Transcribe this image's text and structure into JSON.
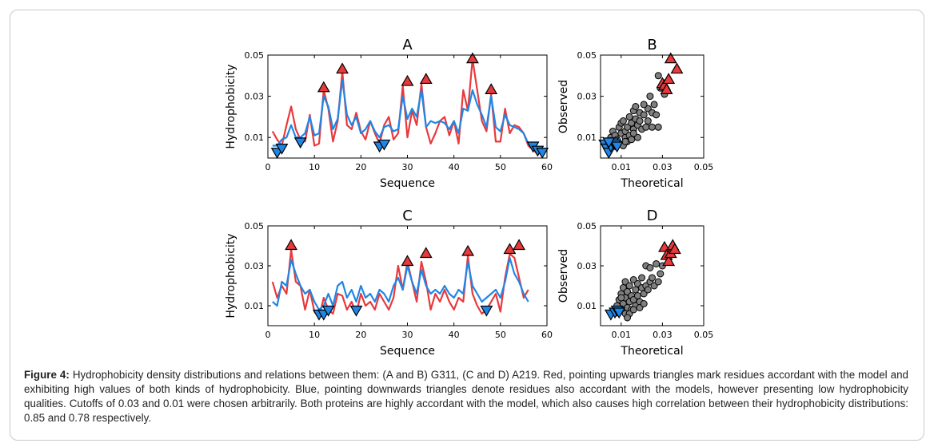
{
  "caption": {
    "label": "Figure 4:",
    "text": "Hydrophobicity density distributions and relations between them: (A and B) G311, (C and D) A219. Red, pointing upwards triangles mark residues accordant with the model and exhibiting high values of both kinds of hydrophobicity. Blue, pointing downwards triangles denote residues also accordant with the models, however presenting low hydrophobicity qualities. Cutoffs of 0.03 and 0.01 were chosen arbitrarily. Both proteins are highly accordant with the model, which also causes high correlation between their hydrophobicity distributions: 0.85 and 0.78 respectively."
  },
  "colors": {
    "red": "#e8393c",
    "blue": "#1f86e6",
    "gray": "#7f7f7f"
  },
  "chart_data": [
    {
      "id": "A",
      "type": "line",
      "title": "A",
      "xlabel": "Sequence",
      "ylabel": "Hydrophobicity",
      "xlim": [
        0,
        60
      ],
      "ylim": [
        0,
        0.05
      ],
      "xticks": [
        "0",
        "10",
        "20",
        "30",
        "40",
        "50",
        "60"
      ],
      "yticks": [
        "0.01",
        "0.03",
        "0.05"
      ],
      "series": [
        {
          "color": "red",
          "x": [
            1,
            2,
            3,
            4,
            5,
            6,
            7,
            8,
            9,
            10,
            11,
            12,
            13,
            14,
            15,
            16,
            17,
            18,
            19,
            20,
            21,
            22,
            23,
            24,
            25,
            26,
            27,
            28,
            29,
            30,
            31,
            32,
            33,
            34,
            35,
            36,
            37,
            38,
            39,
            40,
            41,
            42,
            43,
            44,
            45,
            46,
            47,
            48,
            49,
            50,
            51,
            52,
            53,
            54,
            55,
            56,
            57,
            58,
            59
          ],
          "y": [
            0.013,
            0.009,
            0.006,
            0.016,
            0.025,
            0.014,
            0.009,
            0.008,
            0.021,
            0.006,
            0.007,
            0.033,
            0.024,
            0.008,
            0.018,
            0.042,
            0.016,
            0.014,
            0.022,
            0.013,
            0.009,
            0.018,
            0.012,
            0.007,
            0.016,
            0.02,
            0.009,
            0.012,
            0.035,
            0.01,
            0.023,
            0.016,
            0.036,
            0.015,
            0.007,
            0.012,
            0.018,
            0.02,
            0.011,
            0.018,
            0.007,
            0.033,
            0.023,
            0.048,
            0.033,
            0.018,
            0.013,
            0.031,
            0.008,
            0.008,
            0.024,
            0.012,
            0.016,
            0.015,
            0.012,
            0.006,
            0.004,
            0.002,
            0.003
          ]
        },
        {
          "color": "blue",
          "x": [
            1,
            2,
            3,
            4,
            5,
            6,
            7,
            8,
            9,
            10,
            11,
            12,
            13,
            14,
            15,
            16,
            17,
            18,
            19,
            20,
            21,
            22,
            23,
            24,
            25,
            26,
            27,
            28,
            29,
            30,
            31,
            32,
            33,
            34,
            35,
            36,
            37,
            38,
            39,
            40,
            41,
            42,
            43,
            44,
            45,
            46,
            47,
            48,
            49,
            50,
            51,
            52,
            53,
            54,
            55,
            56,
            57,
            58,
            59
          ],
          "y": [
            0.006,
            0.006,
            0.009,
            0.01,
            0.016,
            0.01,
            0.01,
            0.012,
            0.02,
            0.011,
            0.012,
            0.03,
            0.025,
            0.014,
            0.019,
            0.038,
            0.021,
            0.016,
            0.02,
            0.012,
            0.014,
            0.018,
            0.013,
            0.01,
            0.015,
            0.016,
            0.013,
            0.014,
            0.03,
            0.019,
            0.024,
            0.02,
            0.033,
            0.015,
            0.018,
            0.017,
            0.018,
            0.017,
            0.014,
            0.018,
            0.012,
            0.024,
            0.023,
            0.033,
            0.026,
            0.021,
            0.015,
            0.03,
            0.015,
            0.013,
            0.021,
            0.016,
            0.015,
            0.014,
            0.012,
            0.007,
            0.005,
            0.003,
            0.004
          ]
        }
      ],
      "markers_up": [
        [
          12,
          0.034
        ],
        [
          16,
          0.043
        ],
        [
          30,
          0.037
        ],
        [
          34,
          0.038
        ],
        [
          44,
          0.048
        ],
        [
          48,
          0.033
        ]
      ],
      "markers_down": [
        [
          2,
          0.003
        ],
        [
          3,
          0.005
        ],
        [
          7,
          0.008
        ],
        [
          24,
          0.006
        ],
        [
          25,
          0.007
        ],
        [
          57,
          0.006
        ],
        [
          58,
          0.004
        ],
        [
          59,
          0.003
        ]
      ]
    },
    {
      "id": "B",
      "type": "scatter",
      "title": "B",
      "xlabel": "Theoretical",
      "ylabel": "Observed",
      "xlim": [
        0,
        0.05
      ],
      "ylim": [
        0,
        0.05
      ],
      "xticks": [
        "0.01",
        "0.03",
        "0.05"
      ],
      "yticks": [
        "0.01",
        "0.03",
        "0.05"
      ],
      "points": [
        [
          0.005,
          0.01
        ],
        [
          0.006,
          0.013
        ],
        [
          0.007,
          0.011
        ],
        [
          0.008,
          0.009
        ],
        [
          0.009,
          0.015
        ],
        [
          0.009,
          0.007
        ],
        [
          0.01,
          0.012
        ],
        [
          0.01,
          0.017
        ],
        [
          0.011,
          0.018
        ],
        [
          0.012,
          0.01
        ],
        [
          0.012,
          0.013
        ],
        [
          0.013,
          0.008
        ],
        [
          0.013,
          0.015
        ],
        [
          0.014,
          0.011
        ],
        [
          0.014,
          0.02
        ],
        [
          0.015,
          0.009
        ],
        [
          0.015,
          0.017
        ],
        [
          0.016,
          0.023
        ],
        [
          0.016,
          0.014
        ],
        [
          0.017,
          0.025
        ],
        [
          0.017,
          0.019
        ],
        [
          0.018,
          0.01
        ],
        [
          0.018,
          0.016
        ],
        [
          0.019,
          0.022
        ],
        [
          0.02,
          0.014
        ],
        [
          0.021,
          0.021
        ],
        [
          0.022,
          0.015
        ],
        [
          0.023,
          0.024
        ],
        [
          0.023,
          0.018
        ],
        [
          0.024,
          0.03
        ],
        [
          0.025,
          0.022
        ],
        [
          0.025,
          0.015
        ],
        [
          0.026,
          0.026
        ],
        [
          0.027,
          0.021
        ],
        [
          0.028,
          0.015
        ],
        [
          0.028,
          0.04
        ],
        [
          0.029,
          0.034
        ],
        [
          0.03,
          0.035
        ],
        [
          0.031,
          0.031
        ],
        [
          0.011,
          0.006
        ],
        [
          0.012,
          0.008
        ],
        [
          0.008,
          0.007
        ],
        [
          0.016,
          0.012
        ],
        [
          0.019,
          0.018
        ],
        [
          0.021,
          0.026
        ]
      ],
      "markers_up": [
        [
          0.03,
          0.036
        ],
        [
          0.031,
          0.035
        ],
        [
          0.032,
          0.033
        ],
        [
          0.033,
          0.038
        ],
        [
          0.034,
          0.048
        ],
        [
          0.037,
          0.043
        ]
      ],
      "markers_down": [
        [
          0.002,
          0.007
        ],
        [
          0.003,
          0.005
        ],
        [
          0.004,
          0.003
        ],
        [
          0.005,
          0.006
        ],
        [
          0.006,
          0.008
        ],
        [
          0.007,
          0.007
        ],
        [
          0.008,
          0.006
        ],
        [
          0.004,
          0.008
        ]
      ]
    },
    {
      "id": "C",
      "type": "line",
      "title": "C",
      "xlabel": "Sequence",
      "ylabel": "Hydrophobicity",
      "xlim": [
        0,
        60
      ],
      "ylim": [
        0,
        0.05
      ],
      "xticks": [
        "0",
        "10",
        "20",
        "30",
        "40",
        "50",
        "60"
      ],
      "yticks": [
        "0.01",
        "0.03",
        "0.05"
      ],
      "series": [
        {
          "color": "red",
          "x": [
            1,
            2,
            3,
            4,
            5,
            6,
            7,
            8,
            9,
            10,
            11,
            12,
            13,
            14,
            15,
            16,
            17,
            18,
            19,
            20,
            21,
            22,
            23,
            24,
            25,
            26,
            27,
            28,
            29,
            30,
            31,
            32,
            33,
            34,
            35,
            36,
            37,
            38,
            39,
            40,
            41,
            42,
            43,
            44,
            45,
            46,
            47,
            48,
            49,
            50,
            51,
            52,
            53,
            54,
            55,
            56
          ],
          "y": [
            0.022,
            0.014,
            0.02,
            0.016,
            0.038,
            0.022,
            0.02,
            0.008,
            0.018,
            0.007,
            0.004,
            0.014,
            0.008,
            0.006,
            0.016,
            0.015,
            0.008,
            0.012,
            0.006,
            0.016,
            0.01,
            0.012,
            0.008,
            0.016,
            0.012,
            0.008,
            0.014,
            0.03,
            0.018,
            0.032,
            0.022,
            0.012,
            0.032,
            0.022,
            0.008,
            0.016,
            0.012,
            0.018,
            0.012,
            0.008,
            0.014,
            0.012,
            0.035,
            0.016,
            0.01,
            0.006,
            0.008,
            0.012,
            0.016,
            0.007,
            0.024,
            0.036,
            0.034,
            0.024,
            0.014,
            0.018
          ]
        },
        {
          "color": "blue",
          "x": [
            1,
            2,
            3,
            4,
            5,
            6,
            7,
            8,
            9,
            10,
            11,
            12,
            13,
            14,
            15,
            16,
            17,
            18,
            19,
            20,
            21,
            22,
            23,
            24,
            25,
            26,
            27,
            28,
            29,
            30,
            31,
            32,
            33,
            34,
            35,
            36,
            37,
            38,
            39,
            40,
            41,
            42,
            43,
            44,
            45,
            46,
            47,
            48,
            49,
            50,
            51,
            52,
            53,
            54,
            55,
            56
          ],
          "y": [
            0.012,
            0.01,
            0.022,
            0.02,
            0.033,
            0.026,
            0.02,
            0.016,
            0.018,
            0.012,
            0.008,
            0.01,
            0.016,
            0.01,
            0.02,
            0.022,
            0.014,
            0.018,
            0.012,
            0.02,
            0.014,
            0.016,
            0.012,
            0.018,
            0.016,
            0.012,
            0.02,
            0.024,
            0.018,
            0.03,
            0.022,
            0.016,
            0.028,
            0.02,
            0.016,
            0.018,
            0.016,
            0.02,
            0.016,
            0.014,
            0.018,
            0.016,
            0.032,
            0.02,
            0.016,
            0.012,
            0.014,
            0.016,
            0.018,
            0.014,
            0.022,
            0.034,
            0.026,
            0.022,
            0.016,
            0.012
          ]
        }
      ],
      "markers_up": [
        [
          5,
          0.04
        ],
        [
          30,
          0.032
        ],
        [
          34,
          0.036
        ],
        [
          43,
          0.037
        ],
        [
          52,
          0.038
        ],
        [
          54,
          0.04
        ]
      ],
      "markers_down": [
        [
          11,
          0.006
        ],
        [
          12,
          0.006
        ],
        [
          13,
          0.008
        ],
        [
          19,
          0.008
        ],
        [
          47,
          0.008
        ]
      ]
    },
    {
      "id": "D",
      "type": "scatter",
      "title": "D",
      "xlabel": "Theoretical",
      "ylabel": "Observed",
      "xlim": [
        0,
        0.05
      ],
      "ylim": [
        0,
        0.05
      ],
      "xticks": [
        "0.01",
        "0.03",
        "0.05"
      ],
      "yticks": [
        "0.01",
        "0.03",
        "0.05"
      ],
      "points": [
        [
          0.008,
          0.01
        ],
        [
          0.009,
          0.013
        ],
        [
          0.01,
          0.008
        ],
        [
          0.01,
          0.016
        ],
        [
          0.011,
          0.011
        ],
        [
          0.011,
          0.019
        ],
        [
          0.012,
          0.014
        ],
        [
          0.012,
          0.022
        ],
        [
          0.013,
          0.009
        ],
        [
          0.013,
          0.017
        ],
        [
          0.014,
          0.012
        ],
        [
          0.014,
          0.02
        ],
        [
          0.015,
          0.015
        ],
        [
          0.015,
          0.008
        ],
        [
          0.016,
          0.023
        ],
        [
          0.016,
          0.013
        ],
        [
          0.017,
          0.018
        ],
        [
          0.017,
          0.01
        ],
        [
          0.018,
          0.021
        ],
        [
          0.018,
          0.015
        ],
        [
          0.019,
          0.012
        ],
        [
          0.02,
          0.019
        ],
        [
          0.02,
          0.024
        ],
        [
          0.021,
          0.016
        ],
        [
          0.022,
          0.03
        ],
        [
          0.022,
          0.02
        ],
        [
          0.023,
          0.018
        ],
        [
          0.024,
          0.029
        ],
        [
          0.024,
          0.022
        ],
        [
          0.025,
          0.024
        ],
        [
          0.026,
          0.02
        ],
        [
          0.027,
          0.031
        ],
        [
          0.028,
          0.022
        ],
        [
          0.029,
          0.026
        ],
        [
          0.03,
          0.03
        ],
        [
          0.012,
          0.006
        ],
        [
          0.014,
          0.006
        ],
        [
          0.016,
          0.008
        ],
        [
          0.019,
          0.009
        ],
        [
          0.01,
          0.014
        ],
        [
          0.021,
          0.011
        ],
        [
          0.013,
          0.004
        ]
      ],
      "markers_up": [
        [
          0.031,
          0.039
        ],
        [
          0.032,
          0.035
        ],
        [
          0.033,
          0.032
        ],
        [
          0.034,
          0.036
        ],
        [
          0.035,
          0.04
        ],
        [
          0.036,
          0.038
        ]
      ],
      "markers_down": [
        [
          0.005,
          0.006
        ],
        [
          0.007,
          0.007
        ],
        [
          0.008,
          0.008
        ],
        [
          0.009,
          0.007
        ]
      ]
    }
  ]
}
